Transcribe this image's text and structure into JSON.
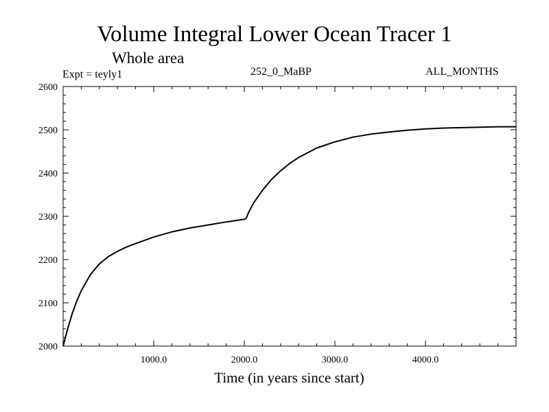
{
  "header": {
    "title": "Volume Integral Lower Ocean Tracer 1",
    "subtitle": "Whole area",
    "experiment": "Expt = teyly1",
    "period": "252_0_MaBP",
    "months": "ALL_MONTHS"
  },
  "chart_data": {
    "type": "line",
    "title": "Volume Integral Lower Ocean Tracer 1",
    "subtitle": "Whole area",
    "xlabel": "Time (in years since start)",
    "ylabel": "",
    "xlim": [
      0,
      5000
    ],
    "ylim": [
      2000,
      2600
    ],
    "xticks": [
      1000,
      2000,
      3000,
      4000
    ],
    "xtick_labels": [
      "1000.0",
      "2000.0",
      "3000.0",
      "4000.0"
    ],
    "yticks": [
      2000,
      2100,
      2200,
      2300,
      2400,
      2500,
      2600
    ],
    "ytick_labels": [
      "2000",
      "2100",
      "2200",
      "2300",
      "2400",
      "2500",
      "2600"
    ],
    "grid": false,
    "series": [
      {
        "name": "Lower Ocean Tracer 1",
        "color": "#000000",
        "x": [
          0,
          50,
          100,
          150,
          200,
          300,
          400,
          500,
          600,
          700,
          800,
          1000,
          1200,
          1400,
          1600,
          1800,
          2000,
          2020,
          2050,
          2100,
          2200,
          2300,
          2400,
          2500,
          2600,
          2800,
          3000,
          3200,
          3400,
          3600,
          3800,
          4000,
          4200,
          4400,
          4600,
          4800,
          5000
        ],
        "values": [
          2000,
          2040,
          2075,
          2104,
          2128,
          2165,
          2190,
          2207,
          2219,
          2229,
          2237,
          2252,
          2264,
          2273,
          2280,
          2287,
          2293,
          2295,
          2310,
          2330,
          2360,
          2385,
          2405,
          2422,
          2436,
          2458,
          2472,
          2483,
          2490,
          2495,
          2499,
          2502,
          2504,
          2505,
          2506,
          2507,
          2507
        ]
      }
    ]
  }
}
